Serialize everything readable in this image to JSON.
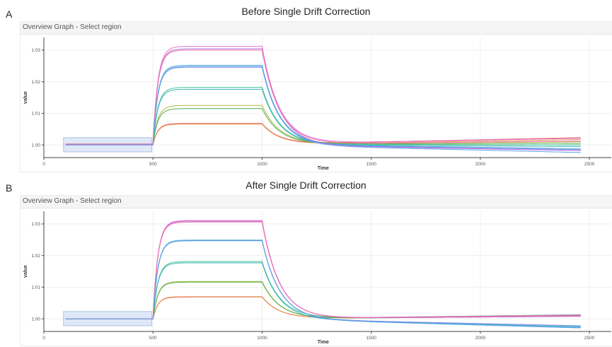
{
  "panels": [
    {
      "letter": "A",
      "title": "Before Single Drift Correction",
      "widget_title": "Overview Graph - Select region"
    },
    {
      "letter": "B",
      "title": "After Single Drift Correction",
      "widget_title": "Overview Graph - Select region"
    }
  ],
  "chart_data": [
    {
      "type": "line",
      "title": "Before Single Drift Correction",
      "xlabel": "Time",
      "ylabel": "value",
      "xlim": [
        0,
        2600
      ],
      "ylim": [
        0.996,
        1.034
      ],
      "xticks": [
        0,
        500,
        1000,
        1500,
        2000,
        2500
      ],
      "yticks": [
        1.0,
        1.01,
        1.02,
        1.03
      ],
      "ytick_labels": [
        "1.00",
        "1.01",
        "1.02",
        "1.03"
      ],
      "grid": true,
      "selection_region": {
        "x": [
          90,
          495
        ],
        "y": [
          0.9978,
          1.0023
        ],
        "color": "#c5d5f2"
      },
      "series": [
        {
          "color": "#e75c5c",
          "baseline": 1.0002,
          "plateau": 1.0068,
          "end": 1.0023
        },
        {
          "color": "#e6914d",
          "baseline": 1.0001,
          "plateau": 1.0066,
          "end": 1.0017
        },
        {
          "color": "#a8b637",
          "baseline": 1.0003,
          "plateau": 1.0125,
          "end": 1.001
        },
        {
          "color": "#53ad4c",
          "baseline": 1.0002,
          "plateau": 1.0115,
          "end": 1.0005
        },
        {
          "color": "#3fbf8e",
          "baseline": 1.0002,
          "plateau": 1.0182,
          "end": 1.0
        },
        {
          "color": "#37b4b8",
          "baseline": 1.0001,
          "plateau": 1.0176,
          "end": 0.9995
        },
        {
          "color": "#4aa6de",
          "baseline": 1.0002,
          "plateau": 1.0252,
          "end": 0.9988
        },
        {
          "color": "#7b86e3",
          "baseline": 1.0001,
          "plateau": 1.0246,
          "end": 0.9985
        },
        {
          "color": "#b06ee0",
          "baseline": 1.0,
          "plateau": 1.0304,
          "end": 0.9982
        },
        {
          "color": "#e56cd0",
          "baseline": 1.0003,
          "plateau": 1.0312,
          "end": 1.0021
        },
        {
          "color": "#ee6fa6",
          "baseline": 1.0002,
          "plateau": 1.03,
          "end": 1.0012
        },
        {
          "color": "#5ba4e8",
          "baseline": 1.0,
          "plateau": 1.0248,
          "end": 0.9976
        }
      ]
    },
    {
      "type": "line",
      "title": "After Single Drift Correction",
      "xlabel": "Time",
      "ylabel": "value",
      "xlim": [
        0,
        2600
      ],
      "ylim": [
        0.996,
        1.034
      ],
      "xticks": [
        0,
        500,
        1000,
        1500,
        2000,
        2500
      ],
      "yticks": [
        1.0,
        1.01,
        1.02,
        1.03
      ],
      "ytick_labels": [
        "1.00",
        "1.01",
        "1.02",
        "1.03"
      ],
      "grid": true,
      "selection_region": {
        "x": [
          90,
          495
        ],
        "y": [
          0.9978,
          1.0023
        ],
        "color": "#c5d5f2"
      },
      "series": [
        {
          "color": "#e75c5c",
          "baseline": 1.0,
          "plateau": 1.0069,
          "end": 1.0012
        },
        {
          "color": "#e6914d",
          "baseline": 1.0,
          "plateau": 1.007,
          "end": 1.001
        },
        {
          "color": "#a8b637",
          "baseline": 1.0,
          "plateau": 1.0118,
          "end": 1.0011
        },
        {
          "color": "#53ad4c",
          "baseline": 1.0,
          "plateau": 1.0116,
          "end": 1.0008
        },
        {
          "color": "#3fbf8e",
          "baseline": 1.0,
          "plateau": 1.0181,
          "end": 1.0013
        },
        {
          "color": "#37b4b8",
          "baseline": 1.0,
          "plateau": 1.0177,
          "end": 0.9975
        },
        {
          "color": "#4aa6de",
          "baseline": 1.0,
          "plateau": 1.0249,
          "end": 0.9973
        },
        {
          "color": "#7b86e3",
          "baseline": 1.0,
          "plateau": 1.0247,
          "end": 0.9978
        },
        {
          "color": "#b06ee0",
          "baseline": 1.0,
          "plateau": 1.0309,
          "end": 1.001
        },
        {
          "color": "#e56cd0",
          "baseline": 1.0,
          "plateau": 1.0311,
          "end": 1.0008
        },
        {
          "color": "#ee6fa6",
          "baseline": 1.0,
          "plateau": 1.0306,
          "end": 1.0012
        },
        {
          "color": "#5ba4e8",
          "baseline": 1.0,
          "plateau": 1.0247,
          "end": 0.9971
        }
      ]
    }
  ]
}
